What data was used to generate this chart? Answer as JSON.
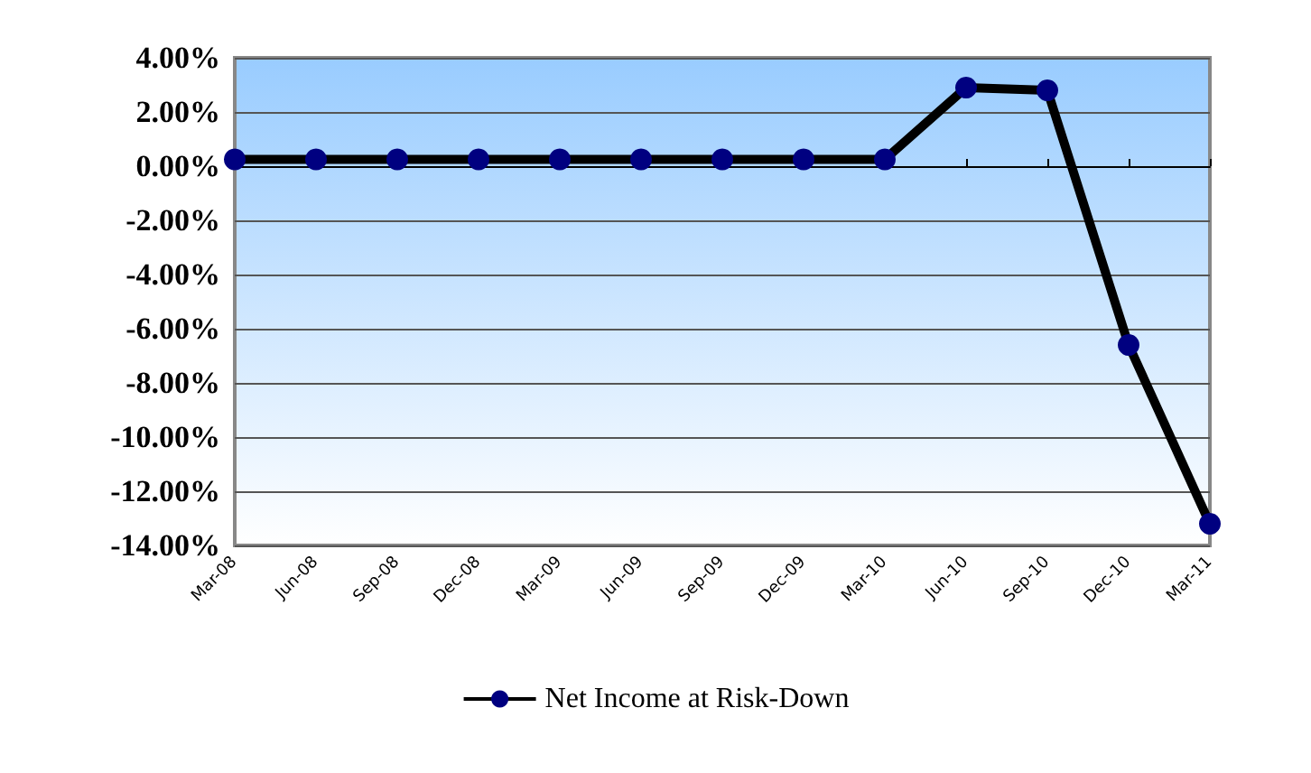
{
  "chart_data": {
    "type": "line",
    "categories": [
      "Mar-08",
      "Jun-08",
      "Sep-08",
      "Dec-08",
      "Mar-09",
      "Jun-09",
      "Sep-09",
      "Dec-09",
      "Mar-10",
      "Jun-10",
      "Sep-10",
      "Dec-10",
      "Mar-11"
    ],
    "series": [
      {
        "name": "Net Income at Risk-Down",
        "color": "#000000",
        "values": [
          0.25,
          0.25,
          0.25,
          0.25,
          0.25,
          0.25,
          0.25,
          0.25,
          0.25,
          2.9,
          2.8,
          -6.6,
          -13.2
        ]
      }
    ],
    "ylim": [
      -14,
      4
    ],
    "yticks": [
      {
        "value": 4,
        "label": "4.00%"
      },
      {
        "value": 2,
        "label": "2.00%"
      },
      {
        "value": 0,
        "label": "0.00%"
      },
      {
        "value": -2,
        "label": "-2.00%"
      },
      {
        "value": -4,
        "label": "-4.00%"
      },
      {
        "value": -6,
        "label": "-6.00%"
      },
      {
        "value": -8,
        "label": "-8.00%"
      },
      {
        "value": -10,
        "label": "-10.00%"
      },
      {
        "value": -12,
        "label": "-12.00%"
      },
      {
        "value": -14,
        "label": "-14.00%"
      }
    ],
    "grid": "y",
    "legend": "bottom",
    "marker": "circle",
    "line_style": "solid"
  }
}
